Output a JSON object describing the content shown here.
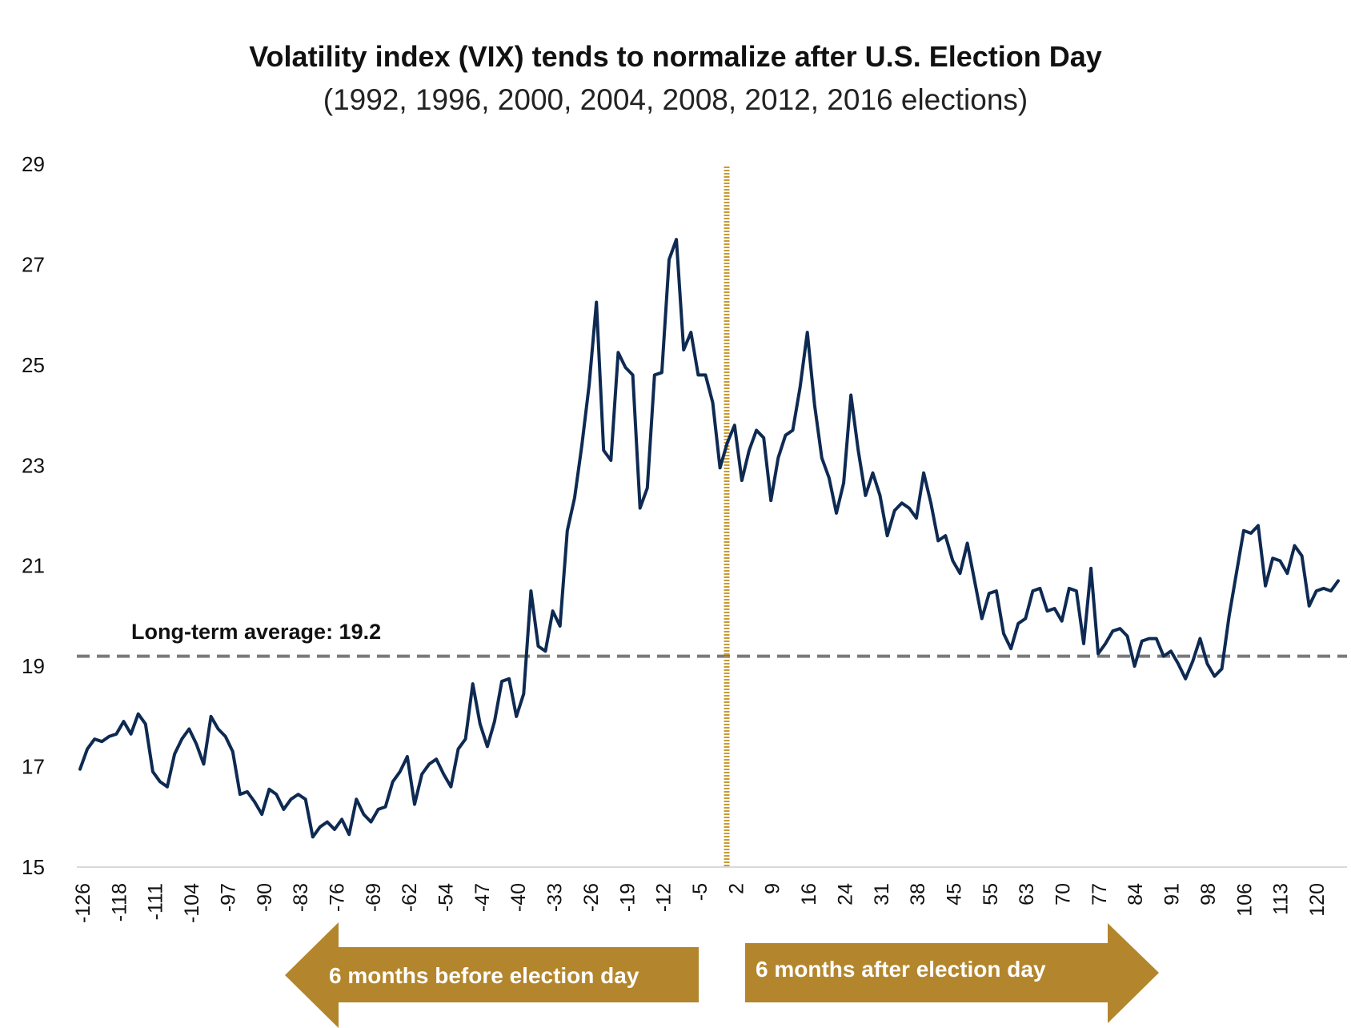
{
  "colors": {
    "series": "#0e2a52",
    "average_line": "#7a7a7a",
    "election_line": "#c89a33",
    "arrow_fill": "#b3862d"
  },
  "chart_data": {
    "type": "line",
    "title": "Volatility index (VIX) tends to normalize after U.S. Election Day",
    "subtitle": "(1992, 1996, 2000, 2004, 2008, 2012, 2016 elections)",
    "xlabel": "",
    "ylabel": "",
    "ylim": [
      15,
      29
    ],
    "yticks": [
      "15",
      "17",
      "19",
      "21",
      "23",
      "25",
      "27",
      "29"
    ],
    "xticks": [
      "-126",
      "-118",
      "-111",
      "-104",
      "-97",
      "-90",
      "-83",
      "-76",
      "-69",
      "-62",
      "-54",
      "-47",
      "-40",
      "-33",
      "-26",
      "-19",
      "-12",
      "-5",
      "2",
      "9",
      "16",
      "24",
      "31",
      "38",
      "45",
      "55",
      "63",
      "70",
      "77",
      "84",
      "91",
      "98",
      "106",
      "113",
      "120"
    ],
    "grid": false,
    "legend": "none",
    "long_term_average": {
      "value": 19.2,
      "label": "Long-term average: 19.2"
    },
    "election_day_index": 0,
    "series": [
      {
        "values": [
          16.95,
          17.35,
          17.55,
          17.5,
          17.6,
          17.65,
          17.9,
          17.65,
          18.05,
          17.85,
          16.9,
          16.7,
          16.6,
          17.25,
          17.55,
          17.75,
          17.45,
          17.05,
          18.0,
          17.75,
          17.6,
          17.3,
          16.45,
          16.5,
          16.3,
          16.05,
          16.55,
          16.45,
          16.15,
          16.35,
          16.45,
          16.35,
          15.6,
          15.8,
          15.9,
          15.75,
          15.95,
          15.65,
          16.35,
          16.05,
          15.9,
          16.15,
          16.2,
          16.7,
          16.9,
          17.2,
          16.25,
          16.85,
          17.05,
          17.15,
          16.85,
          16.6,
          17.35,
          17.55,
          18.65,
          17.85,
          17.4,
          17.9,
          18.7,
          18.75,
          18.0,
          18.45,
          20.5,
          19.4,
          19.3,
          20.1,
          19.8,
          21.7,
          22.35,
          23.4,
          24.6,
          26.25,
          23.3,
          23.1,
          25.25,
          24.95,
          24.8,
          22.15,
          22.55,
          24.8,
          24.85,
          27.1,
          27.5,
          25.3,
          25.65,
          24.8,
          24.8,
          24.25,
          22.95,
          23.45,
          23.8,
          22.7,
          23.3,
          23.7,
          23.55,
          22.3,
          23.15,
          23.6,
          23.7,
          24.55,
          25.65,
          24.2,
          23.15,
          22.75,
          22.05,
          22.65,
          24.4,
          23.3,
          22.4,
          22.85,
          22.4,
          21.6,
          22.1,
          22.25,
          22.15,
          21.95,
          22.85,
          22.25,
          21.5,
          21.6,
          21.1,
          20.85,
          21.45,
          20.7,
          19.95,
          20.45,
          20.5,
          19.65,
          19.35,
          19.85,
          19.95,
          20.5,
          20.55,
          20.1,
          20.15,
          19.9,
          20.55,
          20.5,
          19.45,
          20.95,
          19.25,
          19.45,
          19.7,
          19.75,
          19.6,
          19.0,
          19.5,
          19.55,
          19.55,
          19.2,
          19.3,
          19.05,
          18.75,
          19.1,
          19.55,
          19.05,
          18.8,
          18.95,
          20.0,
          20.85,
          21.7,
          21.65,
          21.8,
          20.6,
          21.15,
          21.1,
          20.85,
          21.4,
          21.2,
          20.2,
          20.5,
          20.55,
          20.5,
          20.7
        ]
      }
    ]
  },
  "annotations": {
    "before_arrow": "6 months before election day",
    "after_arrow": "6 months after election day"
  }
}
